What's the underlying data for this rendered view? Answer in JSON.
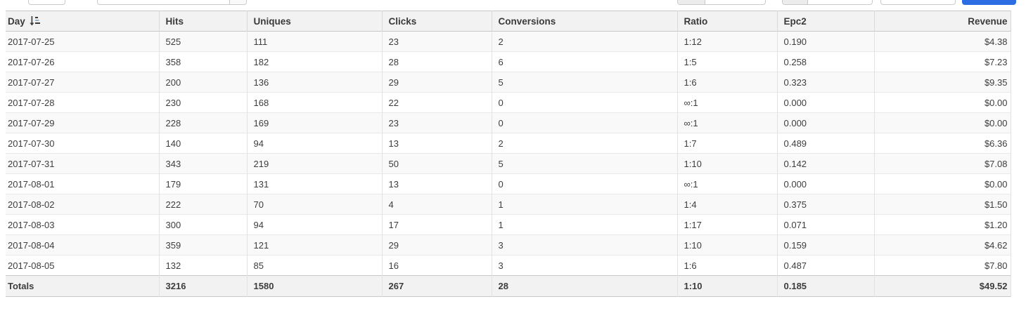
{
  "colors": {
    "accent_blue": "#2c6de4",
    "header_bg": "#f2f2f2",
    "alt_row_bg": "#f9f9f9",
    "totals_bg": "#f2f2f2"
  },
  "topbar": {
    "note": "controls cropped at top edge of screenshot; no text visible",
    "submit_button_color": "#2c6de4"
  },
  "table": {
    "sort": {
      "column": "Day",
      "icon": "sort-descending-icon"
    },
    "columns": [
      {
        "label": "Day",
        "align": "left",
        "sorted": true
      },
      {
        "label": "Hits",
        "align": "left"
      },
      {
        "label": "Uniques",
        "align": "left"
      },
      {
        "label": "Clicks",
        "align": "left"
      },
      {
        "label": "Conversions",
        "align": "left"
      },
      {
        "label": "Ratio",
        "align": "left"
      },
      {
        "label": "Epc2",
        "align": "left"
      },
      {
        "label": "Revenue",
        "align": "right"
      }
    ],
    "rows": [
      [
        "2017-07-25",
        "525",
        "111",
        "23",
        "2",
        "1:12",
        "0.190",
        "$4.38"
      ],
      [
        "2017-07-26",
        "358",
        "182",
        "28",
        "6",
        "1:5",
        "0.258",
        "$7.23"
      ],
      [
        "2017-07-27",
        "200",
        "136",
        "29",
        "5",
        "1:6",
        "0.323",
        "$9.35"
      ],
      [
        "2017-07-28",
        "230",
        "168",
        "22",
        "0",
        "∞:1",
        "0.000",
        "$0.00"
      ],
      [
        "2017-07-29",
        "228",
        "169",
        "23",
        "0",
        "∞:1",
        "0.000",
        "$0.00"
      ],
      [
        "2017-07-30",
        "140",
        "94",
        "13",
        "2",
        "1:7",
        "0.489",
        "$6.36"
      ],
      [
        "2017-07-31",
        "343",
        "219",
        "50",
        "5",
        "1:10",
        "0.142",
        "$7.08"
      ],
      [
        "2017-08-01",
        "179",
        "131",
        "13",
        "0",
        "∞:1",
        "0.000",
        "$0.00"
      ],
      [
        "2017-08-02",
        "222",
        "70",
        "4",
        "1",
        "1:4",
        "0.375",
        "$1.50"
      ],
      [
        "2017-08-03",
        "300",
        "94",
        "17",
        "1",
        "1:17",
        "0.071",
        "$1.20"
      ],
      [
        "2017-08-04",
        "359",
        "121",
        "29",
        "3",
        "1:10",
        "0.159",
        "$4.62"
      ],
      [
        "2017-08-05",
        "132",
        "85",
        "16",
        "3",
        "1:6",
        "0.487",
        "$7.80"
      ]
    ],
    "totals": [
      "Totals",
      "3216",
      "1580",
      "267",
      "28",
      "1:10",
      "0.185",
      "$49.52"
    ]
  }
}
